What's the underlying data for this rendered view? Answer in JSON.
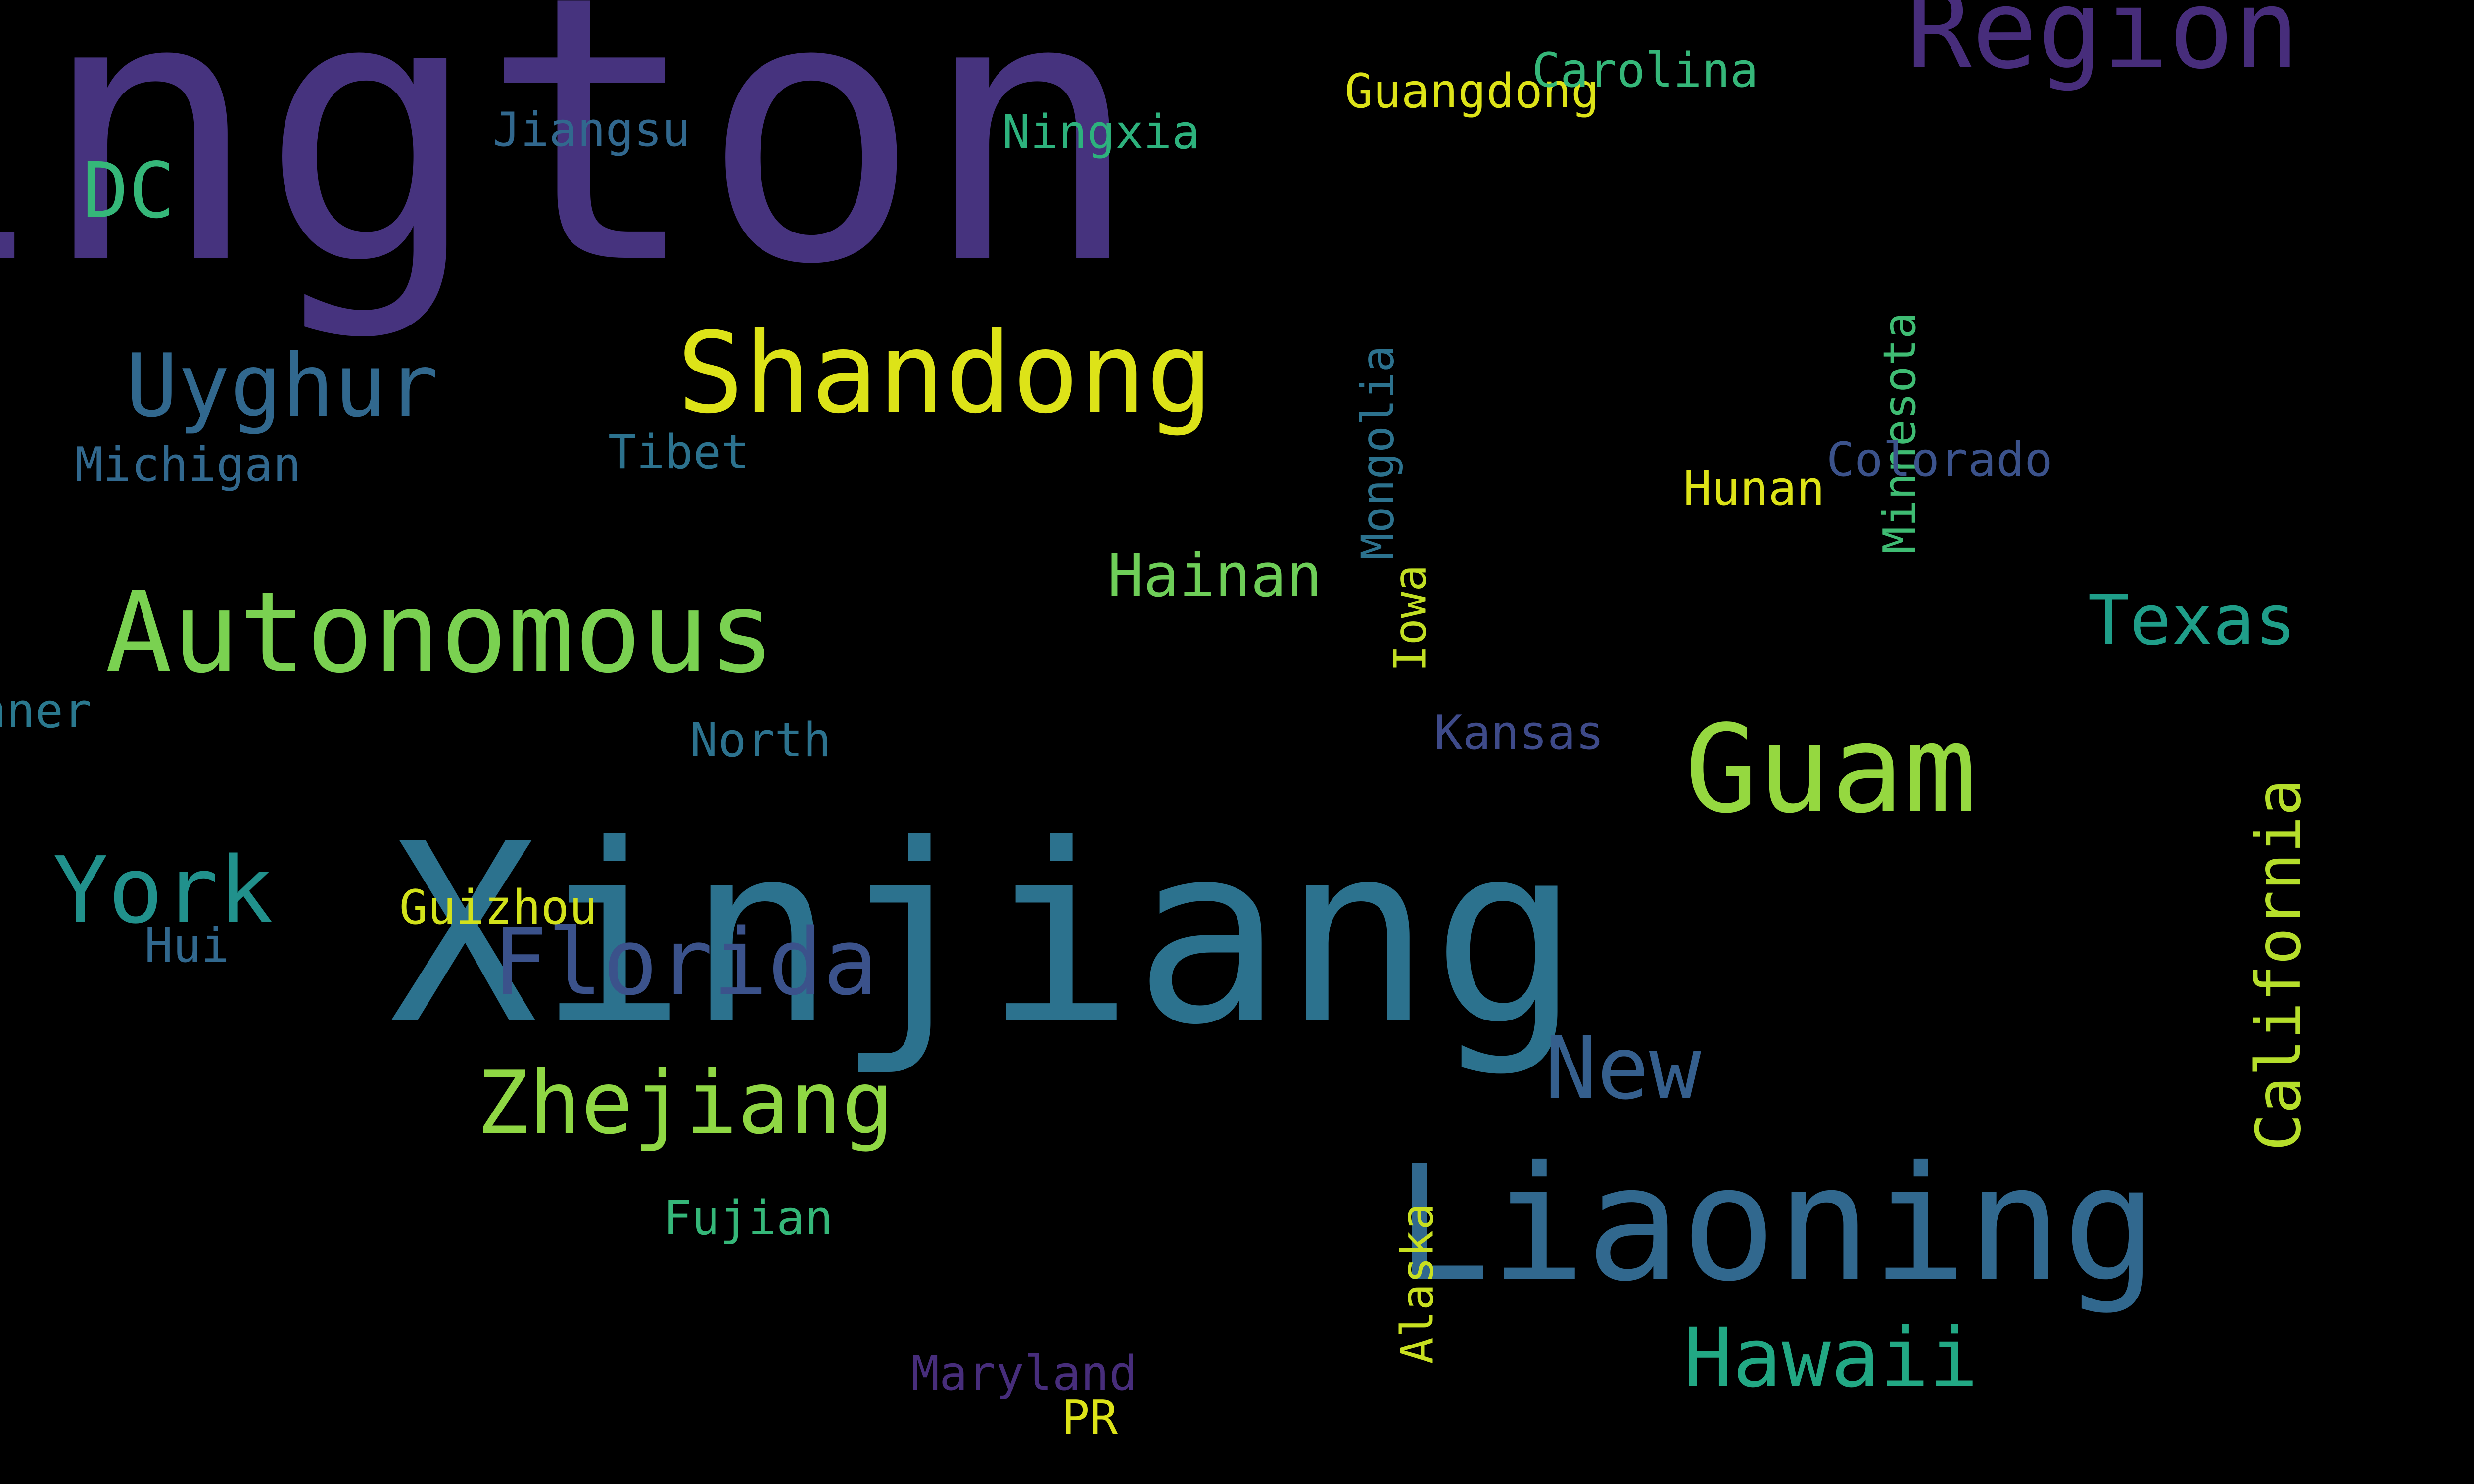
{
  "words": [
    {
      "text": "Washington",
      "color": "#46337e"
    },
    {
      "text": "Xinjiang",
      "color": "#2c728e"
    },
    {
      "text": "Liaoning",
      "color": "#31688e"
    },
    {
      "text": "Region",
      "color": "#472d7b"
    },
    {
      "text": "Shandong",
      "color": "#dde318"
    },
    {
      "text": "Autonomous",
      "color": "#7ad151"
    },
    {
      "text": "Guam",
      "color": "#95d840"
    },
    {
      "text": "Uyghur",
      "color": "#31688e"
    },
    {
      "text": "York",
      "color": "#21918c"
    },
    {
      "text": "Florida",
      "color": "#3b528b"
    },
    {
      "text": "Zhejiang",
      "color": "#8fd744"
    },
    {
      "text": "New",
      "color": "#355f8d"
    },
    {
      "text": "Hawaii",
      "color": "#22a884"
    },
    {
      "text": "Texas",
      "color": "#1f9e89"
    },
    {
      "text": "DC",
      "color": "#35b779"
    },
    {
      "text": "Hainan",
      "color": "#6ece58"
    },
    {
      "text": "California",
      "color": "#b5de2b"
    },
    {
      "text": "Guangdong",
      "color": "#dde318"
    },
    {
      "text": "Carolina",
      "color": "#35b779"
    },
    {
      "text": "Ningxia",
      "color": "#2db27d"
    },
    {
      "text": "Jiangsu",
      "color": "#31688e"
    },
    {
      "text": "Mongolia",
      "color": "#2c728e"
    },
    {
      "text": "Minnesota",
      "color": "#3fbc73"
    },
    {
      "text": "Colorado",
      "color": "#3b528b"
    },
    {
      "text": "Hunan",
      "color": "#dde318"
    },
    {
      "text": "Michigan",
      "color": "#31688e"
    },
    {
      "text": "Tibet",
      "color": "#2c728e"
    },
    {
      "text": "Iowa",
      "color": "#c2df23"
    },
    {
      "text": "Inner",
      "color": "#2a788e"
    },
    {
      "text": "North",
      "color": "#2c728e"
    },
    {
      "text": "Kansas",
      "color": "#3e4a89"
    },
    {
      "text": "Guizhou",
      "color": "#d2e21b"
    },
    {
      "text": "Hui",
      "color": "#31688e"
    },
    {
      "text": "Fujian",
      "color": "#35b779"
    },
    {
      "text": "Alaska",
      "color": "#c8e020"
    },
    {
      "text": "Maryland",
      "color": "#472d7b"
    },
    {
      "text": "PR",
      "color": "#dde318"
    }
  ]
}
